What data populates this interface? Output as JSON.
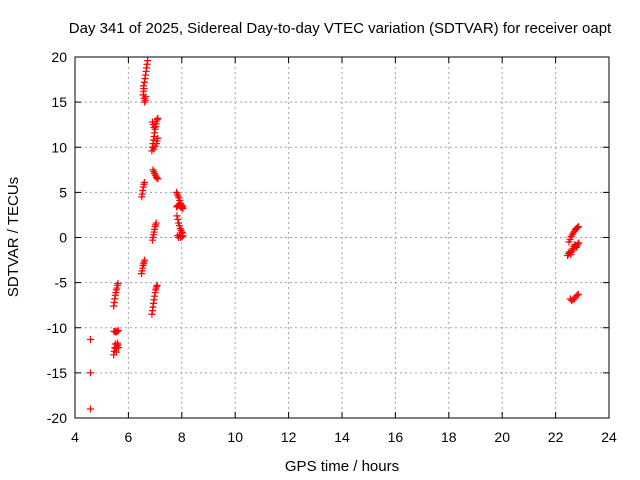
{
  "chart_data": {
    "type": "scatter",
    "title": "Day 341 of 2025, Sidereal Day-to-day VTEC variation (SDTVAR) for receiver oapt",
    "xlabel": "GPS time / hours",
    "ylabel": "SDTVAR / TECUs",
    "xlim": [
      4,
      24
    ],
    "ylim": [
      -20,
      20
    ],
    "xticks": [
      4,
      6,
      8,
      10,
      12,
      14,
      16,
      18,
      20,
      22,
      24
    ],
    "yticks": [
      -20,
      -15,
      -10,
      -5,
      0,
      5,
      10,
      15,
      20
    ],
    "grid": true,
    "marker": "+",
    "color": "#ff0000",
    "series": [
      {
        "name": "SDTVAR",
        "points": [
          [
            4.58,
            -11.3
          ],
          [
            4.58,
            -15.0
          ],
          [
            4.58,
            -19.0
          ],
          [
            5.45,
            -13.0
          ],
          [
            5.47,
            -12.6
          ],
          [
            5.49,
            -12.2
          ],
          [
            5.51,
            -11.8
          ],
          [
            5.53,
            -12.3
          ],
          [
            5.55,
            -12.7
          ],
          [
            5.57,
            -12.0
          ],
          [
            5.59,
            -11.7
          ],
          [
            5.61,
            -11.9
          ],
          [
            5.63,
            -12.2
          ],
          [
            5.46,
            -10.4
          ],
          [
            5.5,
            -10.4
          ],
          [
            5.54,
            -10.5
          ],
          [
            5.58,
            -10.4
          ],
          [
            5.62,
            -10.3
          ],
          [
            5.45,
            -7.6
          ],
          [
            5.47,
            -7.2
          ],
          [
            5.49,
            -6.8
          ],
          [
            5.51,
            -6.4
          ],
          [
            5.53,
            -6.1
          ],
          [
            5.55,
            -5.8
          ],
          [
            5.57,
            -5.6
          ],
          [
            5.59,
            -5.3
          ],
          [
            5.61,
            -5.1
          ],
          [
            6.5,
            4.5
          ],
          [
            6.52,
            4.8
          ],
          [
            6.54,
            5.2
          ],
          [
            6.56,
            5.6
          ],
          [
            6.58,
            5.9
          ],
          [
            6.6,
            6.1
          ],
          [
            6.49,
            -4.0
          ],
          [
            6.51,
            -3.7
          ],
          [
            6.53,
            -3.4
          ],
          [
            6.55,
            -3.1
          ],
          [
            6.57,
            -2.9
          ],
          [
            6.59,
            -2.7
          ],
          [
            6.61,
            -2.5
          ],
          [
            6.55,
            15.8
          ],
          [
            6.57,
            16.2
          ],
          [
            6.59,
            15.4
          ],
          [
            6.61,
            15.0
          ],
          [
            6.63,
            15.2
          ],
          [
            6.65,
            15.6
          ],
          [
            6.56,
            16.8
          ],
          [
            6.58,
            16.5
          ],
          [
            6.6,
            17.2
          ],
          [
            6.62,
            17.6
          ],
          [
            6.64,
            18.0
          ],
          [
            6.66,
            18.4
          ],
          [
            6.68,
            18.8
          ],
          [
            6.7,
            19.2
          ],
          [
            6.72,
            19.6
          ],
          [
            6.88,
            -8.5
          ],
          [
            6.9,
            -8.1
          ],
          [
            6.92,
            -7.7
          ],
          [
            6.94,
            -7.3
          ],
          [
            6.96,
            -6.9
          ],
          [
            6.98,
            -6.5
          ],
          [
            7.0,
            -6.1
          ],
          [
            7.02,
            -5.8
          ],
          [
            7.04,
            -5.6
          ],
          [
            7.06,
            -5.4
          ],
          [
            7.08,
            -5.3
          ],
          [
            6.9,
            -0.3
          ],
          [
            6.92,
            0.0
          ],
          [
            6.94,
            0.3
          ],
          [
            6.96,
            0.6
          ],
          [
            6.98,
            0.9
          ],
          [
            7.0,
            1.2
          ],
          [
            7.02,
            1.4
          ],
          [
            7.04,
            1.6
          ],
          [
            6.92,
            7.5
          ],
          [
            6.95,
            7.3
          ],
          [
            6.98,
            7.1
          ],
          [
            7.01,
            6.9
          ],
          [
            7.04,
            6.7
          ],
          [
            7.07,
            6.6
          ],
          [
            7.1,
            6.5
          ],
          [
            6.88,
            9.6
          ],
          [
            6.9,
            10.0
          ],
          [
            6.92,
            10.4
          ],
          [
            6.94,
            10.8
          ],
          [
            6.96,
            11.2
          ],
          [
            6.98,
            11.6
          ],
          [
            7.0,
            12.0
          ],
          [
            7.02,
            12.3
          ],
          [
            7.04,
            12.6
          ],
          [
            7.06,
            12.9
          ],
          [
            7.08,
            13.1
          ],
          [
            7.1,
            13.2
          ],
          [
            6.95,
            9.8
          ],
          [
            7.0,
            10.1
          ],
          [
            7.05,
            10.4
          ],
          [
            7.08,
            10.7
          ],
          [
            7.1,
            11.0
          ],
          [
            6.9,
            12.8
          ],
          [
            6.93,
            12.5
          ],
          [
            6.96,
            12.2
          ],
          [
            7.8,
            5.0
          ],
          [
            7.83,
            4.8
          ],
          [
            7.86,
            4.6
          ],
          [
            7.89,
            4.4
          ],
          [
            7.92,
            4.1
          ],
          [
            7.95,
            3.8
          ],
          [
            7.98,
            3.6
          ],
          [
            8.01,
            3.5
          ],
          [
            8.04,
            3.4
          ],
          [
            7.8,
            3.4
          ],
          [
            7.84,
            3.5
          ],
          [
            7.88,
            3.6
          ],
          [
            7.92,
            3.5
          ],
          [
            7.96,
            3.4
          ],
          [
            8.0,
            3.3
          ],
          [
            8.04,
            3.2
          ],
          [
            7.82,
            2.4
          ],
          [
            7.85,
            2.0
          ],
          [
            7.88,
            1.6
          ],
          [
            7.91,
            1.3
          ],
          [
            7.94,
            1.0
          ],
          [
            7.97,
            0.8
          ],
          [
            8.0,
            0.6
          ],
          [
            8.03,
            0.5
          ],
          [
            7.84,
            0.2
          ],
          [
            7.88,
            0.0
          ],
          [
            7.92,
            0.3
          ],
          [
            7.96,
            0.0
          ],
          [
            8.0,
            0.1
          ],
          [
            8.04,
            0.2
          ],
          [
            22.45,
            -2.0
          ],
          [
            22.48,
            -1.8
          ],
          [
            22.51,
            -1.6
          ],
          [
            22.54,
            -1.7
          ],
          [
            22.57,
            -1.9
          ],
          [
            22.6,
            -1.6
          ],
          [
            22.63,
            -1.4
          ],
          [
            22.66,
            -1.2
          ],
          [
            22.69,
            -1.0
          ],
          [
            22.72,
            -0.8
          ],
          [
            22.75,
            -0.9
          ],
          [
            22.78,
            -1.1
          ],
          [
            22.81,
            -0.9
          ],
          [
            22.84,
            -0.7
          ],
          [
            22.87,
            -0.6
          ],
          [
            22.5,
            -0.5
          ],
          [
            22.54,
            -0.2
          ],
          [
            22.58,
            0.1
          ],
          [
            22.62,
            0.3
          ],
          [
            22.66,
            0.5
          ],
          [
            22.7,
            0.7
          ],
          [
            22.74,
            0.9
          ],
          [
            22.78,
            1.0
          ],
          [
            22.82,
            1.1
          ],
          [
            22.86,
            1.2
          ],
          [
            22.55,
            -6.8
          ],
          [
            22.6,
            -7.0
          ],
          [
            22.65,
            -6.9
          ],
          [
            22.7,
            -6.8
          ],
          [
            22.75,
            -6.6
          ],
          [
            22.8,
            -6.4
          ],
          [
            22.85,
            -6.3
          ]
        ]
      }
    ]
  }
}
